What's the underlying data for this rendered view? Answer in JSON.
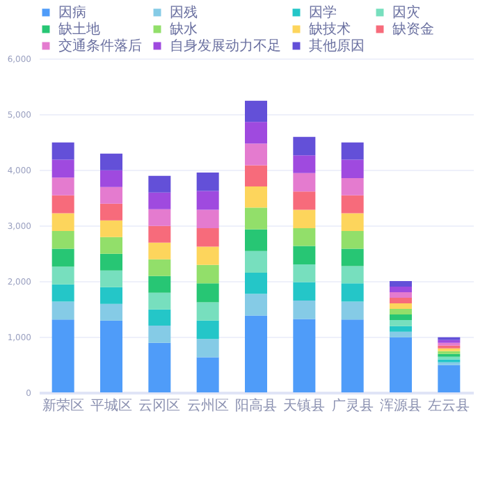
{
  "chart_data": {
    "type": "bar",
    "stacked": true,
    "legend": "top right",
    "grid": "y",
    "categories": [
      "新荣区",
      "平城区",
      "云冈区",
      "云州区",
      "阳高县",
      "天镇县",
      "广灵县",
      "浑源县",
      "左云县"
    ],
    "series": [
      {
        "name": "因病",
        "color": "#4f9cf9",
        "values": [
          1310,
          1290,
          890,
          630,
          1380,
          1320,
          1310,
          990,
          490
        ]
      },
      {
        "name": "因残",
        "color": "#85cbe6",
        "values": [
          320,
          300,
          310,
          330,
          390,
          330,
          320,
          100,
          50
        ]
      },
      {
        "name": "因学",
        "color": "#24c6c8",
        "values": [
          310,
          300,
          290,
          330,
          380,
          330,
          330,
          100,
          50
        ]
      },
      {
        "name": "因灾",
        "color": "#77dfbe",
        "values": [
          320,
          300,
          300,
          330,
          390,
          320,
          310,
          110,
          50
        ]
      },
      {
        "name": "缺土地",
        "color": "#27c674",
        "values": [
          320,
          300,
          300,
          340,
          390,
          330,
          310,
          100,
          50
        ]
      },
      {
        "name": "缺水",
        "color": "#92df6a",
        "values": [
          320,
          300,
          300,
          330,
          390,
          320,
          320,
          100,
          50
        ]
      },
      {
        "name": "缺技术",
        "color": "#fdd55c",
        "values": [
          320,
          300,
          300,
          330,
          380,
          330,
          320,
          100,
          50
        ]
      },
      {
        "name": "缺资金",
        "color": "#f76b7b",
        "values": [
          320,
          300,
          300,
          330,
          380,
          330,
          320,
          100,
          50
        ]
      },
      {
        "name": "交通条件落后",
        "color": "#e47bcf",
        "values": [
          320,
          300,
          300,
          330,
          390,
          330,
          310,
          100,
          50
        ]
      },
      {
        "name": "自身发展动力不足",
        "color": "#9f4adf",
        "values": [
          320,
          300,
          300,
          340,
          390,
          320,
          330,
          100,
          50
        ]
      },
      {
        "name": "其他原因",
        "color": "#6350d8",
        "values": [
          310,
          300,
          300,
          330,
          380,
          330,
          310,
          100,
          50
        ]
      }
    ],
    "ylim": [
      0,
      6000
    ],
    "yticks": [
      0,
      {
        "value": 1000,
        "label": "1,000"
      },
      {
        "value": 2000,
        "label": "2,000"
      },
      {
        "value": 3000,
        "label": "3,000"
      },
      {
        "value": 4000,
        "label": "4,000"
      },
      {
        "value": 5000,
        "label": "5,000"
      },
      {
        "value": 6000,
        "label": "6,000"
      }
    ]
  }
}
